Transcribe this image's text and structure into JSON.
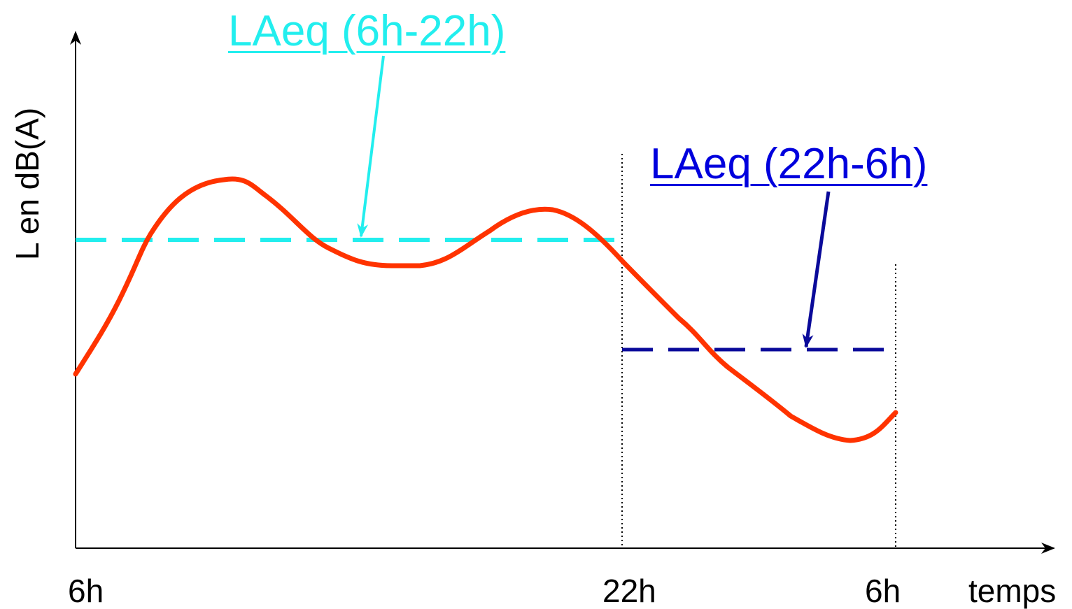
{
  "labels": {
    "y_axis": "L en dB(A)",
    "x_axis": "temps",
    "tick_start": "6h",
    "tick_mid": "22h",
    "tick_end": "6h"
  },
  "annotations": {
    "day_level": "LAeq (6h-22h)",
    "night_level": "LAeq (22h-6h)"
  },
  "colors": {
    "curve": "#ff3300",
    "day_level": "#22eeee",
    "night_level": "#0a0a9a",
    "day_text": "#22eeee",
    "night_text": "#0000dd",
    "axes": "#000000"
  }
}
